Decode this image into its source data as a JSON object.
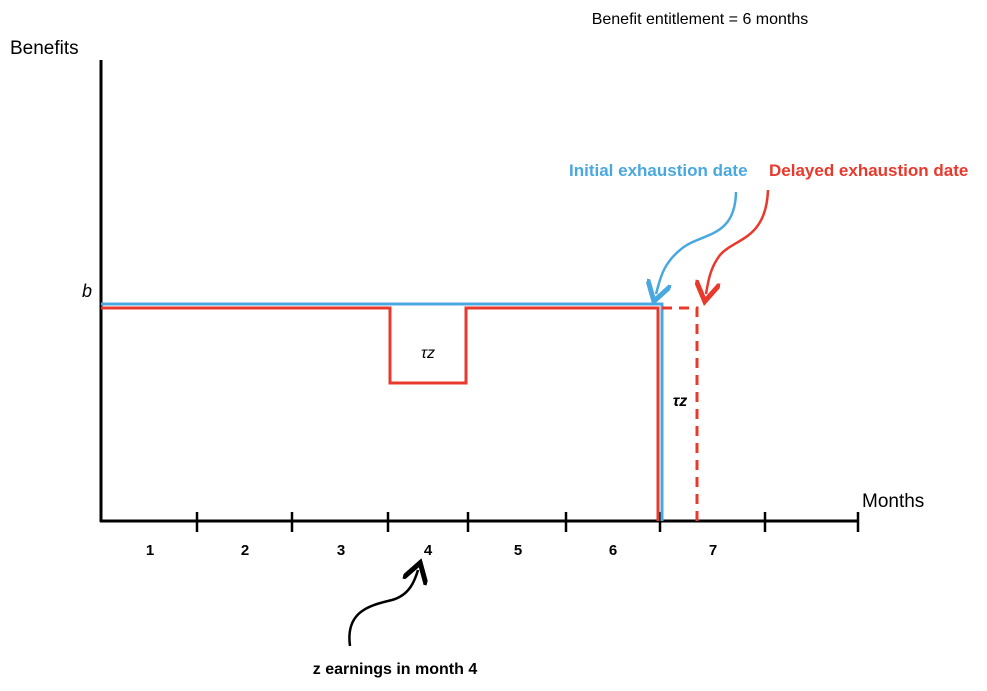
{
  "header": {
    "title": "Benefit entitlement = 6 months"
  },
  "axes": {
    "y_label": "Benefits",
    "y_mark": "b",
    "x_label": "Months",
    "months": [
      "1",
      "2",
      "3",
      "4",
      "5",
      "6",
      "7"
    ]
  },
  "labels": {
    "initial": "Initial exhaustion date",
    "delayed": "Delayed exhaustion date",
    "tax_dip": "τz",
    "tax_extension": "τz"
  },
  "annotation": "z earnings in month 4"
}
